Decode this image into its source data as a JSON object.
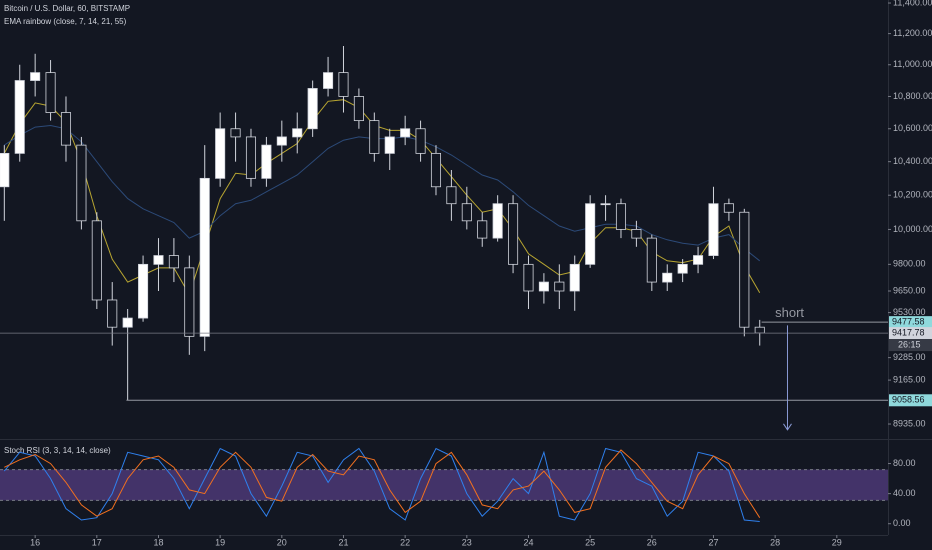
{
  "chart_data": [
    {
      "type": "candlestick",
      "title": "Bitcoin / U.S. Dollar, 60, BITSTAMP",
      "subtitle": "EMA rainbow (close, 7, 14, 21, 55)",
      "log_scale": true,
      "xlim": [
        15.43,
        29.83
      ],
      "ylim": [
        8863,
        11420
      ],
      "yticks": [
        {
          "value": 11400,
          "label": "11,400.00"
        },
        {
          "value": 11200,
          "label": "11,200.00"
        },
        {
          "value": 11000,
          "label": "11,000.00"
        },
        {
          "value": 10800,
          "label": "10,800.00"
        },
        {
          "value": 10600,
          "label": "10,600.00"
        },
        {
          "value": 10400,
          "label": "10,400.00"
        },
        {
          "value": 10200,
          "label": "10,200.00"
        },
        {
          "value": 10000,
          "label": "10,000.00"
        },
        {
          "value": 9800,
          "label": "9800.00"
        },
        {
          "value": 9650,
          "label": "9650.00"
        },
        {
          "value": 9530,
          "label": "9530.00"
        },
        {
          "value": 9285,
          "label": "9285.00"
        },
        {
          "value": 9165,
          "label": "9165.00"
        },
        {
          "value": 8935,
          "label": "8935.00"
        }
      ],
      "up_color": "#ffffff",
      "down_color": "#131722",
      "x": [
        15.5,
        15.75,
        16,
        16.25,
        16.5,
        16.75,
        17,
        17.25,
        17.5,
        17.75,
        18,
        18.25,
        18.5,
        18.75,
        19,
        19.25,
        19.5,
        19.75,
        20,
        20.25,
        20.5,
        20.75,
        21,
        21.25,
        21.5,
        21.75,
        22,
        22.25,
        22.5,
        22.75,
        23,
        23.25,
        23.5,
        23.75,
        24,
        24.25,
        24.5,
        24.75,
        25,
        25.25,
        25.5,
        25.75,
        26,
        26.25,
        26.5,
        26.75,
        27,
        27.25,
        27.5,
        27.75
      ],
      "open": [
        10250,
        10450,
        10900,
        10950,
        10700,
        10500,
        10050,
        9600,
        9450,
        9500,
        9800,
        9850,
        9780,
        9400,
        10300,
        10600,
        10550,
        10300,
        10500,
        10550,
        10600,
        10850,
        10950,
        10800,
        10650,
        10450,
        10550,
        10600,
        10450,
        10250,
        10150,
        10050,
        9950,
        10150,
        9800,
        9650,
        9700,
        9650,
        9800,
        10150,
        10150,
        10000,
        9950,
        9700,
        9750,
        9800,
        9850,
        10150,
        10100,
        9450
      ],
      "high": [
        10500,
        11000,
        11070,
        11030,
        10800,
        10550,
        10100,
        9700,
        9550,
        9850,
        9950,
        9950,
        9850,
        10500,
        10700,
        10700,
        10600,
        10550,
        10650,
        10700,
        10900,
        11050,
        11120,
        10850,
        10700,
        10600,
        10680,
        10650,
        10500,
        10350,
        10250,
        10100,
        10200,
        10200,
        9850,
        9750,
        9800,
        9850,
        10200,
        10200,
        10180,
        10050,
        9970,
        9800,
        9830,
        9900,
        10250,
        10180,
        10120,
        9490
      ],
      "low": [
        10050,
        10400,
        10800,
        10650,
        10400,
        10000,
        9550,
        9350,
        9058.56,
        9480,
        9650,
        9700,
        9300,
        9320,
        10250,
        10400,
        10250,
        10250,
        10400,
        10450,
        10550,
        10800,
        10700,
        10600,
        10400,
        10350,
        10500,
        10400,
        10200,
        10050,
        10000,
        9900,
        9930,
        9750,
        9550,
        9580,
        9550,
        9540,
        9780,
        10050,
        9950,
        9900,
        9650,
        9650,
        9700,
        9750,
        9830,
        10050,
        9400,
        9350
      ],
      "close": [
        10450,
        10900,
        10950,
        10700,
        10500,
        10050,
        9600,
        9450,
        9500,
        9800,
        9850,
        9780,
        9400,
        10300,
        10600,
        10550,
        10300,
        10500,
        10550,
        10600,
        10850,
        10950,
        10800,
        10650,
        10450,
        10550,
        10600,
        10450,
        10250,
        10150,
        10050,
        9950,
        10150,
        9800,
        9650,
        9700,
        9650,
        9800,
        10150,
        10150,
        10000,
        9950,
        9700,
        9750,
        9800,
        9850,
        10150,
        10100,
        9450,
        9417.78
      ],
      "overlays": [
        {
          "color": "#b7a531",
          "values": [
            10450,
            10630,
            10760,
            10740,
            10640,
            10400,
            10080,
            9830,
            9700,
            9740,
            9780,
            9780,
            9630,
            9900,
            10180,
            10330,
            10320,
            10390,
            10450,
            10510,
            10650,
            10770,
            10780,
            10730,
            10620,
            10590,
            10590,
            10530,
            10420,
            10310,
            10200,
            10100,
            10120,
            10000,
            9860,
            9800,
            9740,
            9760,
            9920,
            10010,
            10010,
            9990,
            9870,
            9820,
            9810,
            9830,
            9960,
            10020,
            9790,
            9640
          ]
        },
        {
          "color": "#2c4a78",
          "values": [
            10500,
            10560,
            10610,
            10620,
            10600,
            10520,
            10400,
            10280,
            10180,
            10120,
            10080,
            10040,
            9950,
            9990,
            10080,
            10150,
            10170,
            10220,
            10270,
            10320,
            10400,
            10480,
            10530,
            10550,
            10540,
            10540,
            10550,
            10530,
            10490,
            10440,
            10380,
            10320,
            10290,
            10220,
            10140,
            10080,
            10020,
            9990,
            10010,
            10030,
            10030,
            10020,
            9970,
            9940,
            9920,
            9910,
            9950,
            9970,
            9890,
            9820
          ]
        }
      ],
      "levels": [
        {
          "value": 9477.58,
          "from": 27.78,
          "color": "#8fd9dc"
        },
        {
          "value": 9058.56,
          "from": 17.48,
          "color": "#8fd9dc"
        }
      ],
      "last_price": 9417.78,
      "countdown": "26:15",
      "annotation": {
        "text": "short",
        "x": 28.0,
        "y": 9525
      },
      "arrow": {
        "x": 28.2,
        "from": 9460,
        "to": 8905
      }
    },
    {
      "type": "line",
      "title": "Stoch RSI (3, 3, 14, 14, close)",
      "xlim": [
        15.43,
        29.83
      ],
      "ylim": [
        -15,
        110
      ],
      "yticks": [
        {
          "value": 80,
          "label": "80.00"
        },
        {
          "value": 40,
          "label": "40.00"
        },
        {
          "value": 0,
          "label": "0.00"
        }
      ],
      "xticks": [
        16,
        17,
        18,
        19,
        20,
        21,
        22,
        23,
        24,
        25,
        26,
        27,
        28,
        29
      ],
      "band": [
        31,
        72
      ],
      "x": [
        15.5,
        15.75,
        16,
        16.25,
        16.5,
        16.75,
        17,
        17.25,
        17.5,
        17.75,
        18,
        18.25,
        18.5,
        18.75,
        19,
        19.25,
        19.5,
        19.75,
        20,
        20.25,
        20.5,
        20.75,
        21,
        21.25,
        21.5,
        21.75,
        22,
        22.25,
        22.5,
        22.75,
        23,
        23.25,
        23.5,
        23.75,
        24,
        24.25,
        24.5,
        24.75,
        25,
        25.25,
        25.5,
        25.75,
        26,
        26.25,
        26.5,
        26.75,
        27,
        27.25,
        27.5,
        27.75
      ],
      "series": [
        {
          "color": "#2f80ed",
          "values": [
            70,
            95,
            90,
            60,
            20,
            5,
            8,
            40,
            95,
            90,
            85,
            60,
            20,
            60,
            100,
            90,
            40,
            10,
            50,
            95,
            90,
            55,
            85,
            100,
            70,
            20,
            5,
            60,
            100,
            90,
            40,
            10,
            30,
            60,
            40,
            95,
            10,
            5,
            40,
            100,
            95,
            60,
            50,
            10,
            30,
            95,
            90,
            70,
            5,
            3
          ]
        },
        {
          "color": "#f2701f",
          "values": [
            75,
            85,
            92,
            80,
            55,
            25,
            10,
            20,
            60,
            85,
            90,
            75,
            45,
            40,
            75,
            95,
            75,
            35,
            30,
            75,
            92,
            70,
            65,
            90,
            85,
            45,
            15,
            30,
            80,
            95,
            65,
            25,
            20,
            45,
            50,
            70,
            45,
            15,
            20,
            75,
            98,
            80,
            55,
            30,
            20,
            65,
            90,
            80,
            40,
            8
          ]
        }
      ]
    }
  ]
}
